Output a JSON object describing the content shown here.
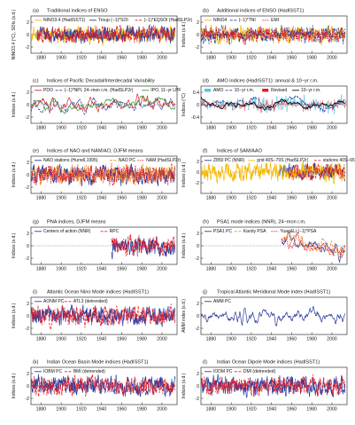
{
  "colors": {
    "blue": "#2b3d9e",
    "red": "#e01e2a",
    "yellow": "#f5b800",
    "green": "#3e9a3a",
    "orange": "#f28c1c",
    "cyan": "#4fc7e6",
    "black": "#111111"
  },
  "chart_data": [
    {
      "panel_label": "(a)",
      "type": "line",
      "title": "Traditional indices of ENSO",
      "ylabel": "NINO3.4 (°C), SOIs (s.d.)",
      "xlim": [
        1870,
        2015
      ],
      "ylim": [
        -3,
        3
      ],
      "yticks": [
        "-2",
        "0",
        "2"
      ],
      "xticks": [
        "1880",
        "1900",
        "1920",
        "1940",
        "1960",
        "1980",
        "2000"
      ],
      "zero_line": true,
      "series": [
        {
          "name": "NINO3.4 (HadISST1)",
          "color": "yellow",
          "dash": "",
          "start": 1870,
          "end": 2013,
          "amp": 0.9,
          "seed": 11
        },
        {
          "name": "Troup (−1)*SOI",
          "color": "blue",
          "dash": "",
          "start": 1876,
          "end": 2013,
          "amp": 0.85,
          "seed": 12
        },
        {
          "name": "(−1)*EQSOI (HadSLP2r)",
          "color": "red",
          "dash": "3,1.5",
          "start": 1876,
          "end": 2013,
          "amp": 0.85,
          "seed": 13
        }
      ]
    },
    {
      "panel_label": "(b)",
      "type": "line",
      "title": "Additional indices of ENSO (HadISST1)",
      "ylabel": "Indices (s.d.)",
      "xlim": [
        1870,
        2015
      ],
      "ylim": [
        -3,
        3
      ],
      "yticks": [
        "-2",
        "0",
        "2"
      ],
      "xticks": [
        "1880",
        "1900",
        "1920",
        "1940",
        "1960",
        "1980",
        "2000"
      ],
      "zero_line": true,
      "series": [
        {
          "name": "NINO4",
          "color": "yellow",
          "dash": "",
          "start": 1870,
          "end": 2013,
          "amp": 0.9,
          "seed": 21
        },
        {
          "name": "(−1)*TNI",
          "color": "blue",
          "dash": "3,1.5",
          "start": 1870,
          "end": 2013,
          "amp": 0.85,
          "seed": 22
        },
        {
          "name": "EMI",
          "color": "red",
          "dash": "1.5,1",
          "start": 1870,
          "end": 2013,
          "amp": 0.85,
          "seed": 23
        }
      ]
    },
    {
      "panel_label": "(c)",
      "type": "line",
      "title": "Indices of Pacific Decadal/Interdecadal Variability",
      "ylabel": "Indices (s.d.)",
      "xlim": [
        1870,
        2015
      ],
      "ylim": [
        -3,
        3
      ],
      "yticks": [
        "-2",
        "0",
        "2"
      ],
      "xticks": [
        "1880",
        "1900",
        "1920",
        "1940",
        "1960",
        "1980",
        "2000"
      ],
      "zero_line": true,
      "series": [
        {
          "name": "PDO",
          "color": "red",
          "dash": "",
          "start": 1870,
          "end": 2013,
          "amp": 1.1,
          "seed": 31,
          "smooth": 3
        },
        {
          "name": "(−1)*NPI, 24−mon r.m. (HadSLP2r)",
          "color": "blue",
          "dash": "3,1.5",
          "start": 1870,
          "end": 2013,
          "amp": 1.0,
          "seed": 32,
          "smooth": 3
        },
        {
          "name": "IPO, 11−yr LPF",
          "color": "green",
          "dash": "",
          "start": 1870,
          "end": 2013,
          "amp": 0.9,
          "seed": 33,
          "smooth": 9
        }
      ]
    },
    {
      "panel_label": "(d)",
      "type": "bar",
      "title": "AMO indices (HadISST1): annual & 10−yr r.m.",
      "ylabel": "Indices (°C)",
      "xlim": [
        1870,
        2015
      ],
      "ylim": [
        -0.6,
        0.6
      ],
      "yticks": [
        "-0.4",
        "0",
        "0.4"
      ],
      "xticks": [
        "1880",
        "1900",
        "1920",
        "1940",
        "1960",
        "1980",
        "2000"
      ],
      "zero_line": true,
      "series": [
        {
          "name": "AMO",
          "color": "cyan",
          "dash": "",
          "start": 1870,
          "end": 2013,
          "amp": 0.18,
          "seed": 41
        },
        {
          "name": "10−yr r.m.",
          "color": "blue",
          "dash": "3,1.5",
          "start": 1870,
          "end": 2013,
          "amp": 0.18,
          "seed": 41,
          "smooth": 10
        },
        {
          "name": "Revised",
          "color": "red",
          "dash": "",
          "start": 1870,
          "end": 2013,
          "amp": 0.16,
          "seed": 42
        },
        {
          "name": "10−yr r.m.",
          "color": "black",
          "dash": "",
          "start": 1870,
          "end": 2013,
          "amp": 0.16,
          "seed": 42,
          "smooth": 10
        }
      ]
    },
    {
      "panel_label": "(e)",
      "type": "line",
      "title": "Indices of NAO and NAM/AO, DJFM means",
      "ylabel": "Indices (s.d.)",
      "xlim": [
        1870,
        2015
      ],
      "ylim": [
        -3,
        3
      ],
      "yticks": [
        "-2",
        "0",
        "2"
      ],
      "xticks": [
        "1880",
        "1900",
        "1920",
        "1940",
        "1960",
        "1980",
        "2000"
      ],
      "zero_line": true,
      "series": [
        {
          "name": "NAO stations (Hurrell,1995)",
          "color": "blue",
          "dash": "",
          "start": 1870,
          "end": 2013,
          "amp": 1.0,
          "seed": 51
        },
        {
          "name": "NAO PC",
          "color": "orange",
          "dash": "3,1.5",
          "start": 1870,
          "end": 2013,
          "amp": 1.0,
          "seed": 52
        },
        {
          "name": "NAM (HadSLP2r)",
          "color": "red",
          "dash": "1.5,1",
          "start": 1870,
          "end": 2013,
          "amp": 1.0,
          "seed": 53
        }
      ]
    },
    {
      "panel_label": "(f)",
      "type": "line",
      "title": "Indices of SAM/AAO",
      "ylabel": "Indices (s.d.)",
      "xlim": [
        1870,
        2015
      ],
      "ylim": [
        -4,
        3
      ],
      "yticks": [
        "-2",
        "0",
        "2"
      ],
      "xticks": [
        "1880",
        "1900",
        "1920",
        "1940",
        "1960",
        "1980",
        "2000"
      ],
      "zero_line": true,
      "series": [
        {
          "name": "Z850 PC (NNR)",
          "color": "blue",
          "dash": "",
          "start": 1948,
          "end": 2013,
          "amp": 1.0,
          "seed": 61
        },
        {
          "name": "grid 40S−70S (HadSLP2r)",
          "color": "yellow",
          "dash": "",
          "start": 1870,
          "end": 2013,
          "amp": 1.1,
          "seed": 62
        },
        {
          "name": "stations 40S−65S",
          "color": "red",
          "dash": "3,1.5",
          "start": 1957,
          "end": 2013,
          "amp": 1.0,
          "seed": 63
        }
      ]
    },
    {
      "panel_label": "(g)",
      "type": "line",
      "title": "PNA indices, DJFM means",
      "ylabel": "Indices (s.d.)",
      "xlim": [
        1870,
        2015
      ],
      "ylim": [
        -3,
        3
      ],
      "yticks": [
        "-2",
        "0",
        "2"
      ],
      "xticks": [
        "1880",
        "1900",
        "1920",
        "1940",
        "1960",
        "1980",
        "2000"
      ],
      "zero_line": true,
      "series": [
        {
          "name": "Centers of action (NNR)",
          "color": "blue",
          "dash": "",
          "start": 1950,
          "end": 2013,
          "amp": 1.0,
          "seed": 71
        },
        {
          "name": "RPC",
          "color": "red",
          "dash": "3,1.5",
          "start": 1950,
          "end": 2013,
          "amp": 1.0,
          "seed": 72
        }
      ]
    },
    {
      "panel_label": "(h)",
      "type": "line",
      "title": "PSA1 mode indices (NNR), 24−mon r.m.",
      "ylabel": "Indices (s.d.)",
      "xlim": [
        1870,
        2015
      ],
      "ylim": [
        -3,
        3
      ],
      "yticks": [
        "-2",
        "0",
        "2"
      ],
      "xticks": [
        "1880",
        "1900",
        "1920",
        "1940",
        "1960",
        "1980",
        "2000"
      ],
      "zero_line": true,
      "series": [
        {
          "name": "PSA1 PC",
          "color": "blue",
          "dash": "",
          "start": 1950,
          "end": 2013,
          "amp": 1.0,
          "seed": 81,
          "smooth": 2,
          "trend": -0.04
        },
        {
          "name": "Karoly PSA",
          "color": "orange",
          "dash": "3,1.5",
          "start": 1950,
          "end": 2013,
          "amp": 1.0,
          "seed": 82,
          "smooth": 2,
          "trend": -0.04
        },
        {
          "name": "Yuan&Li (−1)*PSA",
          "color": "red",
          "dash": "1.5,1",
          "start": 1950,
          "end": 2013,
          "amp": 1.0,
          "seed": 83,
          "smooth": 2,
          "trend": -0.04
        }
      ]
    },
    {
      "panel_label": "(i)",
      "type": "line",
      "title": "Atlantic Ocean Nino Mode indices (HadISST1)",
      "ylabel": "Indices (s.d.)",
      "xlim": [
        1870,
        2015
      ],
      "ylim": [
        -3,
        3
      ],
      "yticks": [
        "-2",
        "0",
        "2"
      ],
      "xticks": [
        "1880",
        "1900",
        "1920",
        "1940",
        "1960",
        "1980",
        "2000"
      ],
      "zero_line": true,
      "series": [
        {
          "name": "AONM PC",
          "color": "blue",
          "dash": "",
          "start": 1870,
          "end": 2013,
          "amp": 1.0,
          "seed": 91
        },
        {
          "name": "ATL3 (detrended)",
          "color": "red",
          "dash": "3,1.5",
          "start": 1870,
          "end": 2013,
          "amp": 1.0,
          "seed": 92
        }
      ]
    },
    {
      "panel_label": "(j)",
      "type": "line",
      "title": "Tropical Atlantic Meridional Mode index (HadISST1)",
      "ylabel": "AMM index (s.d.)",
      "xlim": [
        1870,
        2015
      ],
      "ylim": [
        -3,
        3
      ],
      "yticks": [
        "-2",
        "0",
        "2"
      ],
      "xticks": [
        "1880",
        "1900",
        "1920",
        "1940",
        "1960",
        "1980",
        "2000"
      ],
      "zero_line": false,
      "series": [
        {
          "name": "AMM PC",
          "color": "blue",
          "dash": "",
          "start": 1870,
          "end": 2013,
          "amp": 1.0,
          "seed": 101,
          "smooth": 2
        }
      ]
    },
    {
      "panel_label": "(k)",
      "type": "line",
      "title": "Indian Ocean Basin Mode indices (HadISST1)",
      "ylabel": "Indices (s.d.)",
      "xlim": [
        1870,
        2015
      ],
      "ylim": [
        -3,
        3
      ],
      "yticks": [
        "-2",
        "0",
        "2"
      ],
      "xticks": [
        "1880",
        "1900",
        "1920",
        "1940",
        "1960",
        "1980",
        "2000"
      ],
      "zero_line": true,
      "series": [
        {
          "name": "IOBM PC",
          "color": "blue",
          "dash": "",
          "start": 1870,
          "end": 2013,
          "amp": 1.0,
          "seed": 111
        },
        {
          "name": "BMI (detrended)",
          "color": "red",
          "dash": "3,1.5",
          "start": 1870,
          "end": 2013,
          "amp": 1.0,
          "seed": 112
        }
      ]
    },
    {
      "panel_label": "(l)",
      "type": "line",
      "title": "Indian Ocean Dipole Mode indices (HadISST1)",
      "ylabel": "Indices (s.d.)",
      "xlim": [
        1870,
        2015
      ],
      "ylim": [
        -3,
        3
      ],
      "yticks": [
        "-2",
        "0",
        "2"
      ],
      "xticks": [
        "1880",
        "1900",
        "1920",
        "1940",
        "1960",
        "1980",
        "2000"
      ],
      "zero_line": true,
      "series": [
        {
          "name": "IODM PC",
          "color": "blue",
          "dash": "",
          "start": 1870,
          "end": 2013,
          "amp": 1.0,
          "seed": 121
        },
        {
          "name": "DMI (detrended)",
          "color": "red",
          "dash": "3,1.5",
          "start": 1870,
          "end": 2013,
          "amp": 1.0,
          "seed": 122
        }
      ]
    }
  ]
}
